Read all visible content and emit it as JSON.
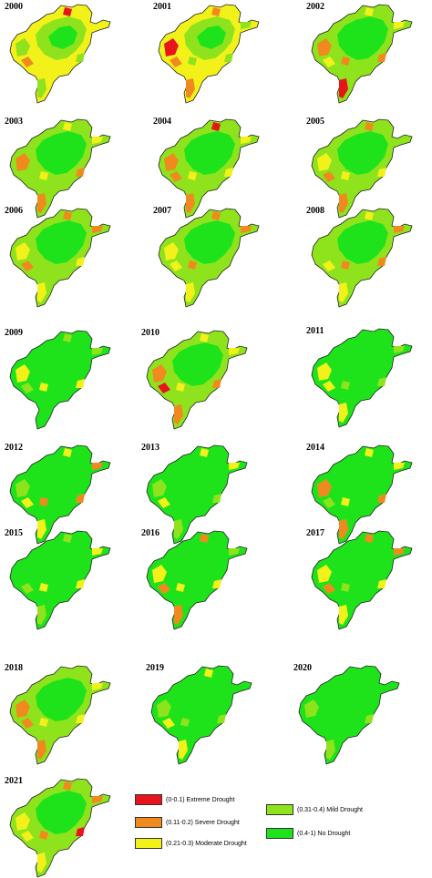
{
  "colors": {
    "extreme": "#e8141c",
    "severe": "#f08a1e",
    "moderate": "#f2f21a",
    "mild": "#8fe31c",
    "none": "#1ee31a",
    "outline": "#222222"
  },
  "panels": [
    {
      "year": "2000",
      "dominant": "moderate",
      "patches": [
        "severe",
        "extreme",
        "mild"
      ]
    },
    {
      "year": "2001",
      "dominant": "moderate",
      "patches": [
        "severe",
        "mild",
        "extreme"
      ]
    },
    {
      "year": "2002",
      "dominant": "mild",
      "patches": [
        "moderate",
        "severe",
        "extreme"
      ]
    },
    {
      "year": "2003",
      "dominant": "mild",
      "patches": [
        "moderate",
        "severe"
      ]
    },
    {
      "year": "2004",
      "dominant": "mild",
      "patches": [
        "moderate",
        "severe",
        "extreme"
      ]
    },
    {
      "year": "2005",
      "dominant": "mild",
      "patches": [
        "moderate",
        "severe"
      ]
    },
    {
      "year": "2006",
      "dominant": "mild",
      "patches": [
        "moderate",
        "severe"
      ]
    },
    {
      "year": "2007",
      "dominant": "mild",
      "patches": [
        "moderate",
        "severe"
      ]
    },
    {
      "year": "2008",
      "dominant": "mild",
      "patches": [
        "moderate",
        "severe"
      ]
    },
    {
      "year": "2009",
      "dominant": "none",
      "patches": [
        "mild",
        "moderate"
      ]
    },
    {
      "year": "2010",
      "dominant": "mild",
      "patches": [
        "moderate",
        "severe",
        "extreme"
      ]
    },
    {
      "year": "2011",
      "dominant": "none",
      "patches": [
        "mild",
        "moderate"
      ]
    },
    {
      "year": "2012",
      "dominant": "none",
      "patches": [
        "mild",
        "moderate",
        "severe"
      ]
    },
    {
      "year": "2013",
      "dominant": "none",
      "patches": [
        "mild",
        "moderate"
      ]
    },
    {
      "year": "2014",
      "dominant": "none",
      "patches": [
        "mild",
        "moderate",
        "severe"
      ]
    },
    {
      "year": "2015",
      "dominant": "none",
      "patches": [
        "mild",
        "moderate"
      ]
    },
    {
      "year": "2016",
      "dominant": "none",
      "patches": [
        "mild",
        "moderate",
        "severe"
      ]
    },
    {
      "year": "2017",
      "dominant": "none",
      "patches": [
        "mild",
        "moderate",
        "severe"
      ]
    },
    {
      "year": "2018",
      "dominant": "mild",
      "patches": [
        "moderate",
        "severe"
      ]
    },
    {
      "year": "2019",
      "dominant": "none",
      "patches": [
        "mild",
        "moderate"
      ]
    },
    {
      "year": "2020",
      "dominant": "none",
      "patches": [
        "mild"
      ]
    },
    {
      "year": "2021",
      "dominant": "mild",
      "patches": [
        "moderate",
        "severe",
        "extreme"
      ]
    }
  ],
  "legend": [
    {
      "label": "(0-0.1) Extreme Drought",
      "class": "extreme"
    },
    {
      "label": "(0.11-0.2) Severe Drought",
      "class": "severe"
    },
    {
      "label": "(0.21-0.3) Moderate Drought",
      "class": "moderate"
    },
    {
      "label": "(0.31-0.4) Mild Drought",
      "class": "mild"
    },
    {
      "label": "(0.4-1) No  Drought",
      "class": "none"
    }
  ]
}
